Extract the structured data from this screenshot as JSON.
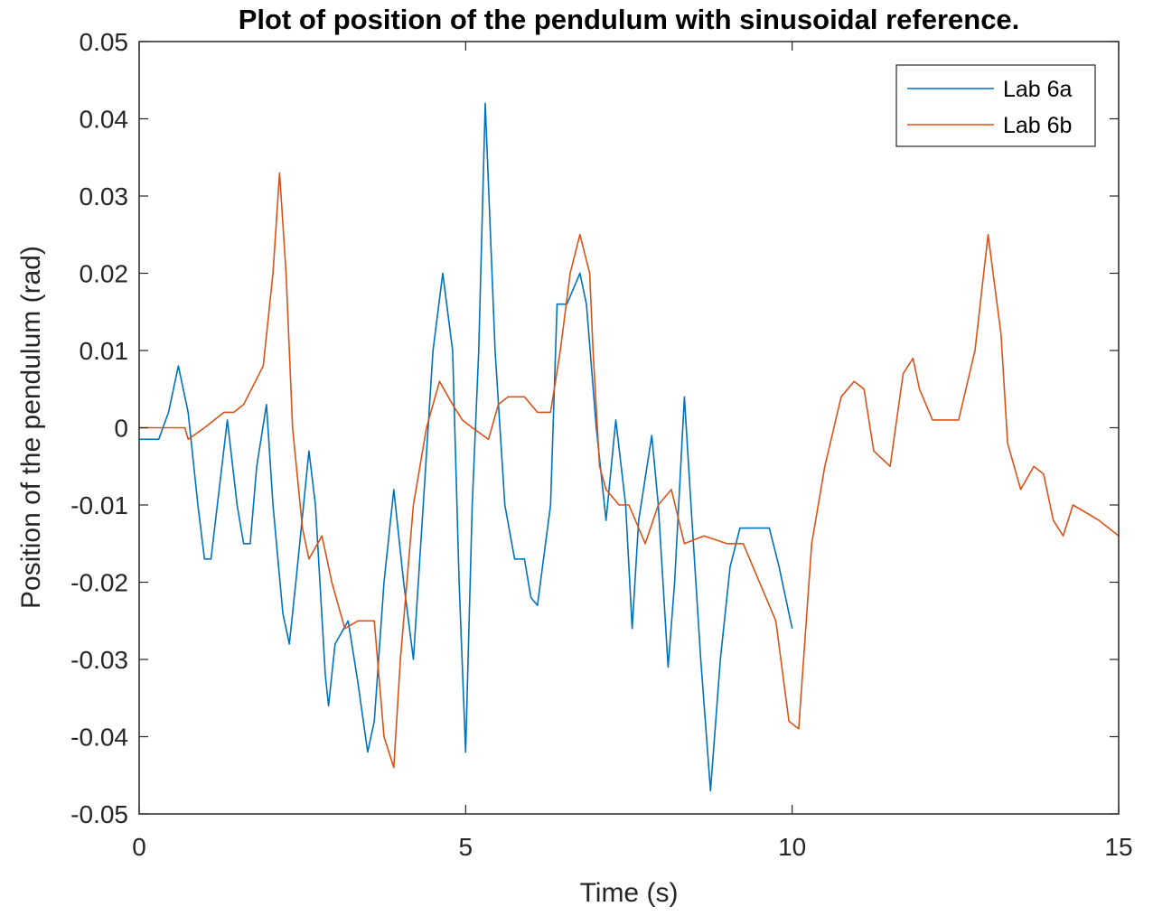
{
  "chart_data": {
    "type": "line",
    "title": "Plot of position of the pendulum with sinusoidal reference.",
    "xlabel": "Time (s)",
    "ylabel": "Position of the pendulum (rad)",
    "xlim": [
      0,
      15
    ],
    "ylim": [
      -0.05,
      0.05
    ],
    "xticks": [
      0,
      5,
      10,
      15
    ],
    "xtick_labels": [
      "0",
      "5",
      "10",
      "15"
    ],
    "yticks": [
      -0.05,
      -0.04,
      -0.03,
      -0.02,
      -0.01,
      0,
      0.01,
      0.02,
      0.03,
      0.04,
      0.05
    ],
    "ytick_labels": [
      "-0.05",
      "-0.04",
      "-0.03",
      "-0.02",
      "-0.01",
      "0",
      "0.01",
      "0.02",
      "0.03",
      "0.04",
      "0.05"
    ],
    "grid": false,
    "legend_position": "top-right",
    "series": [
      {
        "name": "Lab 6a",
        "color": "#0072BD",
        "x": [
          0,
          0.3,
          0.45,
          0.6,
          0.75,
          0.9,
          1.0,
          1.1,
          1.35,
          1.5,
          1.6,
          1.7,
          1.8,
          1.95,
          2.05,
          2.2,
          2.3,
          2.4,
          2.6,
          2.7,
          2.85,
          2.9,
          3.0,
          3.2,
          3.35,
          3.5,
          3.6,
          3.75,
          3.9,
          4.05,
          4.2,
          4.35,
          4.5,
          4.65,
          4.8,
          4.9,
          5.0,
          5.1,
          5.2,
          5.3,
          5.45,
          5.6,
          5.75,
          5.9,
          6.0,
          6.1,
          6.3,
          6.4,
          6.55,
          6.65,
          6.75,
          6.85,
          7.0,
          7.15,
          7.3,
          7.45,
          7.55,
          7.65,
          7.85,
          7.95,
          8.1,
          8.2,
          8.35,
          8.45,
          8.6,
          8.75,
          8.9,
          9.05,
          9.2,
          9.35,
          9.5,
          9.65,
          9.8,
          9.9,
          10.0
        ],
        "values": [
          -0.0015,
          -0.0015,
          0.002,
          0.008,
          0.002,
          -0.01,
          -0.017,
          -0.017,
          0.001,
          -0.01,
          -0.015,
          -0.015,
          -0.005,
          0.003,
          -0.01,
          -0.024,
          -0.028,
          -0.02,
          -0.003,
          -0.01,
          -0.032,
          -0.036,
          -0.028,
          -0.025,
          -0.033,
          -0.042,
          -0.038,
          -0.02,
          -0.008,
          -0.02,
          -0.03,
          -0.01,
          0.01,
          0.02,
          0.01,
          -0.02,
          -0.042,
          -0.01,
          0.01,
          0.042,
          0.01,
          -0.01,
          -0.017,
          -0.017,
          -0.022,
          -0.023,
          -0.01,
          0.016,
          0.016,
          0.018,
          0.02,
          0.016,
          0.0,
          -0.012,
          0.001,
          -0.01,
          -0.026,
          -0.012,
          -0.001,
          -0.01,
          -0.031,
          -0.02,
          0.004,
          -0.01,
          -0.03,
          -0.047,
          -0.03,
          -0.018,
          -0.013,
          -0.013,
          -0.013,
          -0.013,
          -0.018,
          -0.022,
          -0.026
        ]
      },
      {
        "name": "Lab 6b",
        "color": "#D95319",
        "x": [
          0,
          0.7,
          0.75,
          1.0,
          1.3,
          1.45,
          1.6,
          1.9,
          2.05,
          2.15,
          2.25,
          2.35,
          2.5,
          2.6,
          2.8,
          2.95,
          3.15,
          3.35,
          3.6,
          3.75,
          3.9,
          4.0,
          4.2,
          4.4,
          4.6,
          4.8,
          4.95,
          5.1,
          5.35,
          5.5,
          5.65,
          5.9,
          6.1,
          6.3,
          6.45,
          6.6,
          6.75,
          6.9,
          6.95,
          7.05,
          7.15,
          7.35,
          7.5,
          7.75,
          7.95,
          8.15,
          8.35,
          8.65,
          9.0,
          9.25,
          9.5,
          9.75,
          9.95,
          10.1,
          10.3,
          10.5,
          10.75,
          10.95,
          11.1,
          11.25,
          11.5,
          11.7,
          11.85,
          11.95,
          12.15,
          12.35,
          12.55,
          12.8,
          13.0,
          13.2,
          13.3,
          13.5,
          13.7,
          13.85,
          14.0,
          14.15,
          14.3,
          14.5,
          14.7,
          15.0
        ],
        "values": [
          0.0,
          0.0,
          -0.0015,
          0.0,
          0.002,
          0.002,
          0.003,
          0.008,
          0.02,
          0.033,
          0.02,
          0.0,
          -0.013,
          -0.017,
          -0.014,
          -0.02,
          -0.026,
          -0.025,
          -0.025,
          -0.04,
          -0.044,
          -0.03,
          -0.01,
          0.0,
          0.006,
          0.003,
          0.001,
          0.0,
          -0.0015,
          0.003,
          0.004,
          0.004,
          0.002,
          0.002,
          0.01,
          0.02,
          0.025,
          0.02,
          0.01,
          -0.005,
          -0.008,
          -0.01,
          -0.01,
          -0.015,
          -0.01,
          -0.008,
          -0.015,
          -0.014,
          -0.015,
          -0.015,
          -0.02,
          -0.025,
          -0.038,
          -0.039,
          -0.015,
          -0.005,
          0.004,
          0.006,
          0.005,
          -0.003,
          -0.005,
          0.007,
          0.009,
          0.005,
          0.001,
          0.001,
          0.001,
          0.01,
          0.025,
          0.012,
          -0.002,
          -0.008,
          -0.005,
          -0.006,
          -0.012,
          -0.014,
          -0.01,
          -0.011,
          -0.012,
          -0.014
        ]
      }
    ]
  }
}
